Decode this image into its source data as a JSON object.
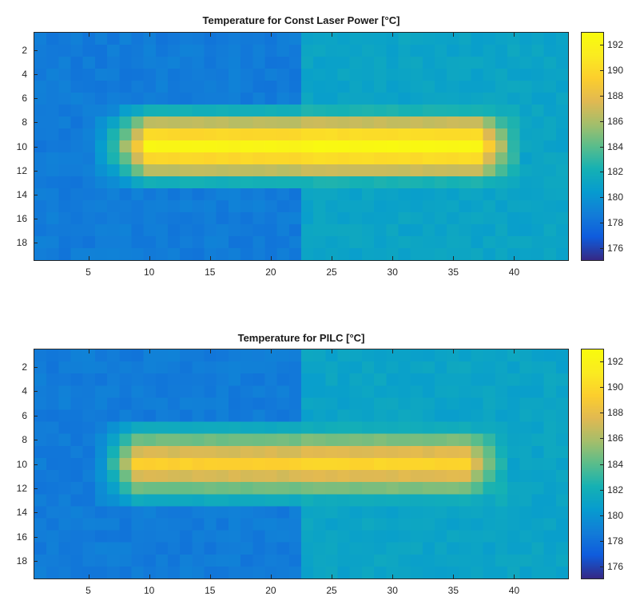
{
  "chart_data": [
    {
      "type": "heatmap",
      "title": "Temperature for Const Laser Power [°C]",
      "xlabel": "",
      "ylabel": "",
      "x_range": [
        0.5,
        44.5
      ],
      "y_range": [
        0.5,
        19.5
      ],
      "x_ticks": [
        5,
        10,
        15,
        20,
        25,
        30,
        35,
        40
      ],
      "y_ticks": [
        2,
        4,
        6,
        8,
        10,
        12,
        14,
        16,
        18
      ],
      "colorbar": {
        "colormap": "parula",
        "range": [
          175,
          193
        ],
        "ticks": [
          176,
          178,
          180,
          182,
          184,
          186,
          188,
          190,
          192
        ]
      },
      "grid_size": {
        "rows": 19,
        "cols": 44
      },
      "background": {
        "left_cols_1_22": 178.5,
        "right_cols_23_44": 181.0
      },
      "band": {
        "rows": [
          7,
          8,
          9,
          10,
          11,
          12,
          13
        ],
        "row_peak_temps": [
          182.0,
          186.5,
          190.0,
          192.3,
          190.0,
          186.5,
          182.0
        ],
        "col_start": 6,
        "col_end": 40,
        "core_col_start": 10,
        "core_col_end": 37
      },
      "peak_temp": 192.5
    },
    {
      "type": "heatmap",
      "title": "Temperature for PILC [°C]",
      "xlabel": "",
      "ylabel": "",
      "x_range": [
        0.5,
        44.5
      ],
      "y_range": [
        0.5,
        19.5
      ],
      "x_ticks": [
        5,
        10,
        15,
        20,
        25,
        30,
        35,
        40
      ],
      "y_ticks": [
        2,
        4,
        6,
        8,
        10,
        12,
        14,
        16,
        18
      ],
      "colorbar": {
        "colormap": "parula",
        "range": [
          175,
          193
        ],
        "ticks": [
          176,
          178,
          180,
          182,
          184,
          186,
          188,
          190,
          192
        ]
      },
      "grid_size": {
        "rows": 19,
        "cols": 44
      },
      "background": {
        "left_cols_1_22": 178.5,
        "right_cols_23_44": 181.0
      },
      "band": {
        "rows": [
          7,
          8,
          9,
          10,
          11,
          12,
          13
        ],
        "row_peak_temps": [
          181.5,
          184.5,
          187.3,
          189.5,
          187.3,
          184.5,
          181.5
        ],
        "col_start": 6,
        "col_end": 39,
        "core_col_start": 9,
        "core_col_end": 36
      },
      "peak_temp": 189.8
    }
  ],
  "panels": [
    {
      "title": "Temperature for Const Laser Power [°C]"
    },
    {
      "title": "Temperature for PILC [°C]"
    }
  ]
}
